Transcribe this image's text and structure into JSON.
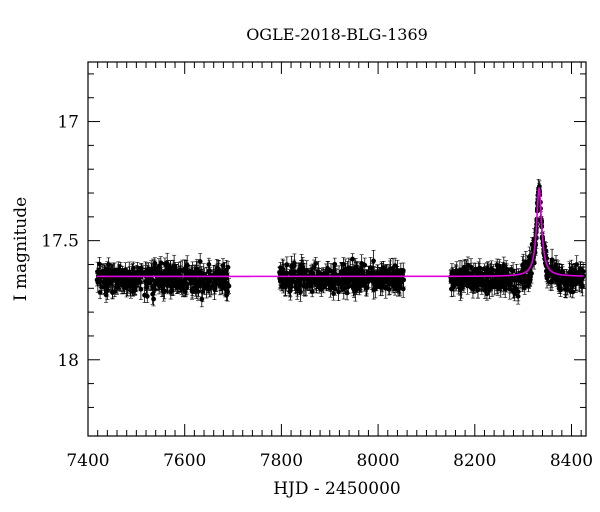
{
  "chart_data": {
    "type": "scatter",
    "title": "OGLE-2018-BLG-1369",
    "xlabel": "HJD - 2450000",
    "ylabel": "I magnitude",
    "xlim": [
      7400,
      8430
    ],
    "ylim": [
      18.32,
      16.75
    ],
    "y_inverted": true,
    "grid": false,
    "x_ticks": [
      "7400",
      "7600",
      "7800",
      "8000",
      "8200",
      "8400"
    ],
    "y_ticks": [
      "17",
      "17.5",
      "18"
    ],
    "baseline_mag": 17.65,
    "series": [
      {
        "kind": "observations",
        "marker_color": "#000000",
        "segments": [
          {
            "x_start": 7418,
            "x_end": 7693,
            "mean_mag": 17.66,
            "scatter": 0.05,
            "n_points": 420
          },
          {
            "x_start": 7795,
            "x_end": 8053,
            "mean_mag": 17.66,
            "scatter": 0.045,
            "n_points": 380
          },
          {
            "x_start": 8150,
            "x_end": 8425,
            "mean_mag": 17.66,
            "scatter": 0.045,
            "n_points": 420
          }
        ],
        "peak": {
          "t0": 8333,
          "mag": 17.29,
          "width_days": 8
        }
      },
      {
        "kind": "model",
        "line_color": "#e000e0",
        "t0": 8333,
        "peak_mag": 17.28,
        "baseline_mag": 17.65,
        "x_start": 7418,
        "x_end": 8425
      }
    ]
  }
}
